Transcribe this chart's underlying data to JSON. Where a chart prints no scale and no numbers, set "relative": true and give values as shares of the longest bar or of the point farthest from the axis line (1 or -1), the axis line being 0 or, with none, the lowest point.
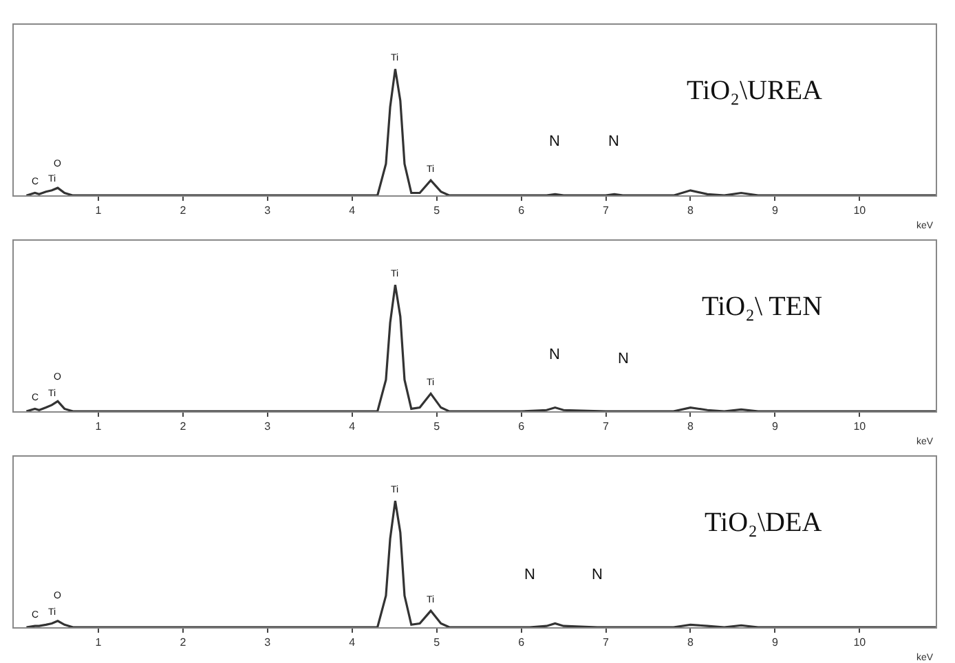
{
  "chart_data": [
    {
      "type": "line",
      "title": "TiO₂\\UREA",
      "relative": true,
      "xlabel": "keV",
      "xlim": [
        0,
        10.9
      ],
      "xticks": [
        1,
        2,
        3,
        4,
        5,
        6,
        7,
        8,
        9,
        10
      ],
      "color": "#333333",
      "x": [
        0.15,
        0.25,
        0.3,
        0.38,
        0.45,
        0.52,
        0.6,
        0.7,
        1,
        2,
        3,
        4,
        4.3,
        4.4,
        4.45,
        4.51,
        4.57,
        4.62,
        4.7,
        4.8,
        4.93,
        5.05,
        5.15,
        5.5,
        6,
        6.3,
        6.4,
        6.5,
        7,
        7.1,
        7.2,
        7.8,
        8.0,
        8.2,
        8.4,
        8.6,
        8.8,
        9,
        10,
        10.9
      ],
      "values": [
        0,
        0.02,
        0.01,
        0.03,
        0.04,
        0.06,
        0.02,
        0,
        0,
        0,
        0,
        0,
        0,
        0.25,
        0.7,
        1,
        0.75,
        0.25,
        0.02,
        0.02,
        0.12,
        0.03,
        0,
        0,
        0,
        0,
        0.01,
        0,
        0,
        0.01,
        0,
        0,
        0.04,
        0.01,
        0,
        0.02,
        0,
        0,
        0,
        0
      ],
      "annotations": [
        {
          "text": "C",
          "x": 0.25,
          "y": 0.02
        },
        {
          "text": "Ti",
          "x": 0.45,
          "y": 0.04
        },
        {
          "text": "O",
          "x": 0.52,
          "y": 0.06
        },
        {
          "text": "Ti",
          "x": 4.51,
          "y": 1
        },
        {
          "text": "Ti",
          "x": 4.93,
          "y": 0.12
        },
        {
          "text": "N",
          "x": 6.4,
          "y": 0.01
        },
        {
          "text": "N",
          "x": 7.1,
          "y": 0.01
        }
      ]
    },
    {
      "type": "line",
      "title": "TiO₂\\ TEN",
      "relative": true,
      "xlabel": "keV",
      "xlim": [
        0,
        10.9
      ],
      "xticks": [
        1,
        2,
        3,
        4,
        5,
        6,
        7,
        8,
        9,
        10
      ],
      "color": "#333333",
      "x": [
        0.15,
        0.25,
        0.3,
        0.38,
        0.45,
        0.52,
        0.6,
        0.7,
        1,
        2,
        3,
        4,
        4.3,
        4.4,
        4.45,
        4.51,
        4.57,
        4.62,
        4.7,
        4.8,
        4.93,
        5.05,
        5.15,
        5.5,
        6,
        6.3,
        6.4,
        6.5,
        7,
        7.1,
        7.2,
        7.8,
        8.0,
        8.2,
        8.4,
        8.6,
        8.8,
        9,
        10,
        10.9
      ],
      "values": [
        0,
        0.02,
        0.01,
        0.03,
        0.05,
        0.08,
        0.02,
        0,
        0,
        0,
        0,
        0,
        0,
        0.25,
        0.7,
        1,
        0.75,
        0.25,
        0.02,
        0.03,
        0.14,
        0.03,
        0,
        0,
        0,
        0.01,
        0.03,
        0.01,
        0,
        0,
        0,
        0,
        0.03,
        0.01,
        0,
        0.015,
        0,
        0,
        0,
        0
      ],
      "annotations": [
        {
          "text": "C",
          "x": 0.25,
          "y": 0.02
        },
        {
          "text": "Ti",
          "x": 0.45,
          "y": 0.05
        },
        {
          "text": "O",
          "x": 0.52,
          "y": 0.08
        },
        {
          "text": "Ti",
          "x": 4.51,
          "y": 1
        },
        {
          "text": "Ti",
          "x": 4.93,
          "y": 0.14
        },
        {
          "text": "N",
          "x": 6.4,
          "y": 0.03
        },
        {
          "text": "N",
          "x": 7.2,
          "y": 0
        }
      ]
    },
    {
      "type": "line",
      "title": "TiO₂\\DEA",
      "relative": true,
      "xlabel": "keV",
      "xlim": [
        0,
        10.9
      ],
      "xticks": [
        1,
        2,
        3,
        4,
        5,
        6,
        7,
        8,
        9,
        10
      ],
      "color": "#333333",
      "x": [
        0.15,
        0.25,
        0.3,
        0.38,
        0.45,
        0.52,
        0.6,
        0.7,
        1,
        2,
        3,
        4,
        4.3,
        4.4,
        4.45,
        4.51,
        4.57,
        4.62,
        4.7,
        4.8,
        4.93,
        5.05,
        5.15,
        5.5,
        6.1,
        6.3,
        6.4,
        6.5,
        6.9,
        7.1,
        7.2,
        7.8,
        8.0,
        8.2,
        8.4,
        8.6,
        8.8,
        9,
        10,
        10.9
      ],
      "values": [
        0,
        0.01,
        0.01,
        0.02,
        0.03,
        0.05,
        0.02,
        0,
        0,
        0,
        0,
        0,
        0,
        0.25,
        0.7,
        1,
        0.75,
        0.25,
        0.02,
        0.03,
        0.13,
        0.03,
        0,
        0,
        0,
        0.01,
        0.03,
        0.01,
        0,
        0,
        0,
        0,
        0.02,
        0.01,
        0,
        0.015,
        0,
        0,
        0,
        0
      ],
      "annotations": [
        {
          "text": "C",
          "x": 0.25,
          "y": 0.01
        },
        {
          "text": "Ti",
          "x": 0.45,
          "y": 0.03
        },
        {
          "text": "O",
          "x": 0.52,
          "y": 0.05
        },
        {
          "text": "Ti",
          "x": 4.51,
          "y": 1
        },
        {
          "text": "Ti",
          "x": 4.93,
          "y": 0.13
        },
        {
          "text": "N",
          "x": 6.1,
          "y": 0
        },
        {
          "text": "N",
          "x": 6.9,
          "y": 0
        }
      ]
    }
  ]
}
